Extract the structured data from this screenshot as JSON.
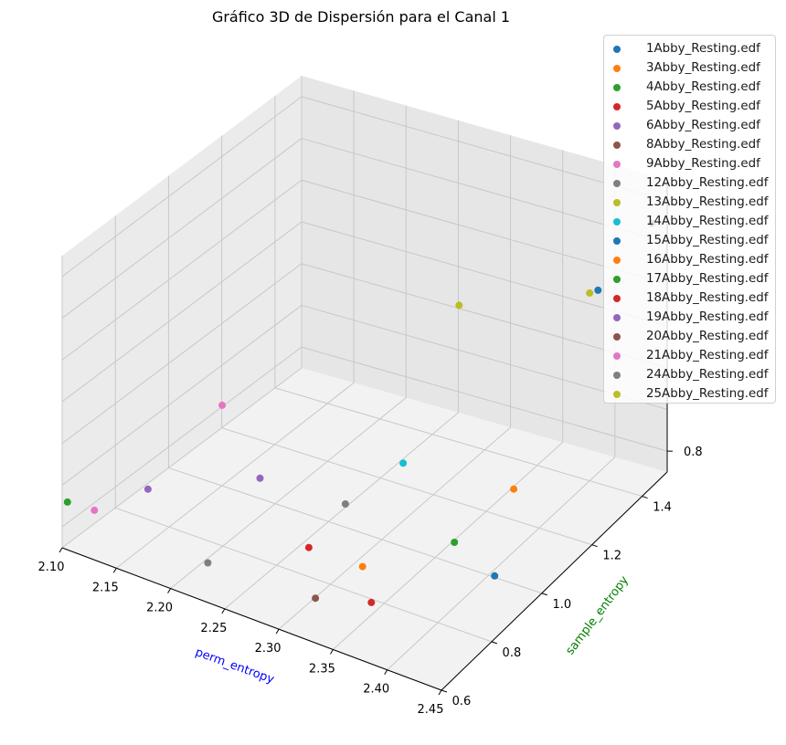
{
  "chart_data": {
    "type": "scatter",
    "projection": "3d",
    "title": "Gráfico 3D de Dispersión para el Canal 1",
    "xlabel": "perm_entropy",
    "ylabel": "sample_entropy",
    "zlabel": "",
    "xlabel_color": "#0000ff",
    "ylabel_color": "#008000",
    "xlim": [
      2.1,
      2.45
    ],
    "ylim": [
      0.6,
      1.5
    ],
    "zlim": [
      0.75,
      1.45
    ],
    "xticks": [
      "2.10",
      "2.15",
      "2.20",
      "2.25",
      "2.30",
      "2.35",
      "2.40",
      "2.45"
    ],
    "yticks": [
      "0.6",
      "0.8",
      "1.0",
      "1.2",
      "1.4"
    ],
    "zticks": [
      "0.8"
    ],
    "grid": true,
    "legend_position": "top-right",
    "series": [
      {
        "name": "1Abby_Resting.edf",
        "color": "#1f77b4",
        "points": [
          {
            "x": 2.42,
            "y": 0.94,
            "z": 0.8
          }
        ]
      },
      {
        "name": "3Abby_Resting.edf",
        "color": "#ff7f0e",
        "points": [
          {
            "x": 2.33,
            "y": 0.8,
            "z": 0.82
          }
        ]
      },
      {
        "name": "4Abby_Resting.edf",
        "color": "#2ca02c",
        "points": [
          {
            "x": 2.1,
            "y": 0.62,
            "z": 0.85
          }
        ]
      },
      {
        "name": "5Abby_Resting.edf",
        "color": "#d62728",
        "points": [
          {
            "x": 2.35,
            "y": 0.75,
            "z": 0.78
          }
        ]
      },
      {
        "name": "6Abby_Resting.edf",
        "color": "#9467bd",
        "points": [
          {
            "x": 2.15,
            "y": 0.72,
            "z": 0.88
          }
        ]
      },
      {
        "name": "8Abby_Resting.edf",
        "color": "#8c564b",
        "points": [
          {
            "x": 2.31,
            "y": 0.7,
            "z": 0.78
          }
        ]
      },
      {
        "name": "9Abby_Resting.edf",
        "color": "#e377c2",
        "points": [
          {
            "x": 2.12,
            "y": 0.64,
            "z": 0.84
          }
        ]
      },
      {
        "name": "12Abby_Resting.edf",
        "color": "#7f7f7f",
        "points": [
          {
            "x": 2.22,
            "y": 0.66,
            "z": 0.8
          }
        ]
      },
      {
        "name": "13Abby_Resting.edf",
        "color": "#bcbd22",
        "points": [
          {
            "x": 2.4,
            "y": 1.4,
            "z": 1.2
          }
        ]
      },
      {
        "name": "14Abby_Resting.edf",
        "color": "#17becf",
        "points": [
          {
            "x": 2.32,
            "y": 1.0,
            "z": 0.95
          }
        ]
      },
      {
        "name": "15Abby_Resting.edf",
        "color": "#1f77b4",
        "points": [
          {
            "x": 2.42,
            "y": 1.35,
            "z": 1.25
          }
        ]
      },
      {
        "name": "16Abby_Resting.edf",
        "color": "#ff7f0e",
        "points": [
          {
            "x": 2.4,
            "y": 1.1,
            "z": 0.9
          }
        ]
      },
      {
        "name": "17Abby_Resting.edf",
        "color": "#2ca02c",
        "points": [
          {
            "x": 2.38,
            "y": 0.95,
            "z": 0.84
          }
        ]
      },
      {
        "name": "18Abby_Resting.edf",
        "color": "#d62728",
        "points": [
          {
            "x": 2.28,
            "y": 0.8,
            "z": 0.82
          }
        ]
      },
      {
        "name": "19Abby_Resting.edf",
        "color": "#9467bd",
        "points": [
          {
            "x": 2.22,
            "y": 0.86,
            "z": 0.9
          }
        ]
      },
      {
        "name": "20Abby_Resting.edf",
        "color": "#8c564b",
        "points": [
          {
            "x": 2.44,
            "y": 1.48,
            "z": 1.35
          }
        ]
      },
      {
        "name": "21Abby_Resting.edf",
        "color": "#e377c2",
        "points": [
          {
            "x": 2.17,
            "y": 0.92,
            "z": 1.0
          }
        ]
      },
      {
        "name": "24Abby_Resting.edf",
        "color": "#7f7f7f",
        "points": [
          {
            "x": 2.29,
            "y": 0.9,
            "z": 0.88
          }
        ]
      },
      {
        "name": "25Abby_Resting.edf",
        "color": "#bcbd22",
        "points": [
          {
            "x": 2.3,
            "y": 1.3,
            "z": 1.15
          }
        ]
      }
    ]
  }
}
